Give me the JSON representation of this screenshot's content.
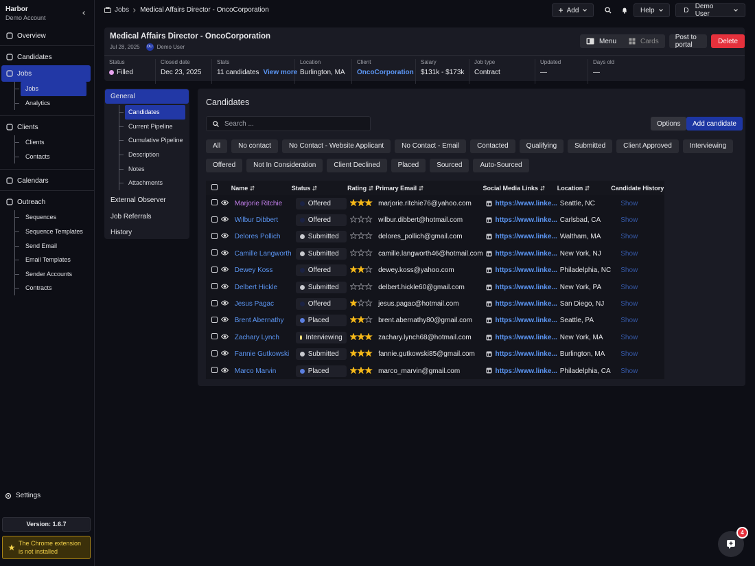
{
  "sidebar": {
    "brand": "Harbor",
    "account": "Demo Account",
    "nav": [
      [
        {
          "label": "Overview"
        }
      ],
      [
        {
          "label": "Candidates"
        },
        {
          "label": "Jobs",
          "children": [
            "Jobs",
            "Analytics"
          ]
        }
      ],
      [
        {
          "label": "Clients",
          "children": [
            "Clients",
            "Contacts"
          ]
        }
      ],
      [
        {
          "label": "Calendars"
        }
      ],
      [
        {
          "label": "Outreach",
          "children": [
            "Sequences",
            "Sequence Templates",
            "Send Email",
            "Email Templates",
            "Sender Accounts",
            "Contracts"
          ]
        }
      ]
    ],
    "settings": "Settings",
    "version": "Version: 1.6.7",
    "extension_notice": "The Chrome extension is not installed"
  },
  "topbar": {
    "breadcrumb": [
      "Jobs",
      "Medical Affairs Director - OncoCorporation"
    ],
    "add": "Add",
    "help": "Help",
    "user_initial": "D",
    "user": "Demo User"
  },
  "job": {
    "title": "Medical Affairs Director - OncoCorporation",
    "date": "Jul 28, 2025",
    "owner_initials": "DU",
    "owner": "Demo User",
    "actions": [
      "Menu",
      "Cards",
      "Post to portal",
      "Delete"
    ],
    "stats": [
      {
        "label": "Status",
        "value": "Filled",
        "dot_color": "#e7a3ef"
      },
      {
        "label": "Closed date",
        "value": "Dec 23, 2025"
      },
      {
        "label": "Stats",
        "value": "11 candidates",
        "link": "View more"
      },
      {
        "label": "Location",
        "value": "Burlington, MA"
      },
      {
        "label": "Client",
        "value": "OncoCorporation"
      },
      {
        "label": "Salary",
        "value": "$131k - $173k"
      },
      {
        "label": "Job type",
        "value": "Contract"
      },
      {
        "label": "Updated",
        "value": "—"
      },
      {
        "label": "Days old",
        "value": "—"
      }
    ]
  },
  "tabs": [
    {
      "label": "General",
      "children": [
        "Candidates",
        "Current Pipeline",
        "Cumulative Pipeline",
        "Description",
        "Notes",
        "Attachments"
      ]
    },
    {
      "label": "External Observer"
    },
    {
      "label": "Job Referrals"
    },
    {
      "label": "History"
    }
  ],
  "candidates": {
    "title": "Candidates",
    "search_placeholder": "Search ...",
    "buttons": [
      "Options",
      "Add candidate"
    ],
    "filters": [
      [
        "All",
        "No contact",
        "No Contact - Website Applicant",
        "No Contact - Email",
        "Contacted",
        "Qualifying",
        "Submitted",
        "Client Approved",
        "Interviewing"
      ],
      [
        "Offered",
        "Not In Consideration",
        "Client Declined",
        "Placed",
        "Sourced",
        "Auto-Sourced"
      ]
    ],
    "table": {
      "columns": [
        "Name",
        "Status",
        "Rating",
        "Primary Email",
        "Social Media Links",
        "Location",
        "Candidate History"
      ],
      "rows": [
        {
          "name": "Marjorie Ritchie",
          "status": "Offered",
          "dot_color": "#1b2244",
          "rating": 3,
          "email": "marjorie.ritchie76@yahoo.com",
          "link": "https://www.linke...",
          "location": "Seattle, NC",
          "history": "Show"
        },
        {
          "name": "Wilbur Dibbert",
          "status": "Offered",
          "dot_color": "#1b2244",
          "rating": 0,
          "email": "wilbur.dibbert@hotmail.com",
          "link": "https://www.linke...",
          "location": "Carlsbad, CA",
          "history": "Show"
        },
        {
          "name": "Delores Pollich",
          "status": "Submitted",
          "dot_color": "#c9cacf",
          "rating": 0,
          "email": "delores_pollich@gmail.com",
          "link": "https://www.linke...",
          "location": "Waltham, MA",
          "history": "Show"
        },
        {
          "name": "Camille Langworth",
          "status": "Submitted",
          "dot_color": "#c9cacf",
          "rating": 0,
          "email": "camille.langworth46@hotmail.com",
          "link": "https://www.linke...",
          "location": "New York, NJ",
          "history": "Show"
        },
        {
          "name": "Dewey Koss",
          "status": "Offered",
          "dot_color": "#1b2244",
          "rating": 2,
          "email": "dewey.koss@yahoo.com",
          "link": "https://www.linke...",
          "location": "Philadelphia, NC",
          "history": "Show"
        },
        {
          "name": "Delbert Hickle",
          "status": "Submitted",
          "dot_color": "#c9cacf",
          "rating": 0,
          "email": "delbert.hickle60@gmail.com",
          "link": "https://www.linke...",
          "location": "New York, PA",
          "history": "Show"
        },
        {
          "name": "Jesus Pagac",
          "status": "Offered",
          "dot_color": "#1b2244",
          "rating": 1,
          "email": "jesus.pagac@hotmail.com",
          "link": "https://www.linke...",
          "location": "San Diego, NJ",
          "history": "Show"
        },
        {
          "name": "Brent Abernathy",
          "status": "Placed",
          "dot_color": "#5b7fe0",
          "rating": 2,
          "email": "brent.abernathy80@gmail.com",
          "link": "https://www.linke...",
          "location": "Seattle, PA",
          "history": "Show"
        },
        {
          "name": "Zachary Lynch",
          "status": "Interviewing",
          "dot_color": "#f6e27a",
          "rating": 3,
          "email": "zachary.lynch68@hotmail.com",
          "link": "https://www.linke...",
          "location": "New York, MA",
          "history": "Show"
        },
        {
          "name": "Fannie Gutkowski",
          "status": "Submitted",
          "dot_color": "#c9cacf",
          "rating": 3,
          "email": "fannie.gutkowski85@gmail.com",
          "link": "https://www.linke...",
          "location": "Burlington, MA",
          "history": "Show"
        },
        {
          "name": "Marco Marvin",
          "status": "Placed",
          "dot_color": "#5b7fe0",
          "rating": 3,
          "email": "marco_marvin@gmail.com",
          "link": "https://www.linke...",
          "location": "Philadelphia, CA",
          "history": "Show"
        }
      ]
    }
  },
  "notifications": {
    "badge": "4"
  }
}
